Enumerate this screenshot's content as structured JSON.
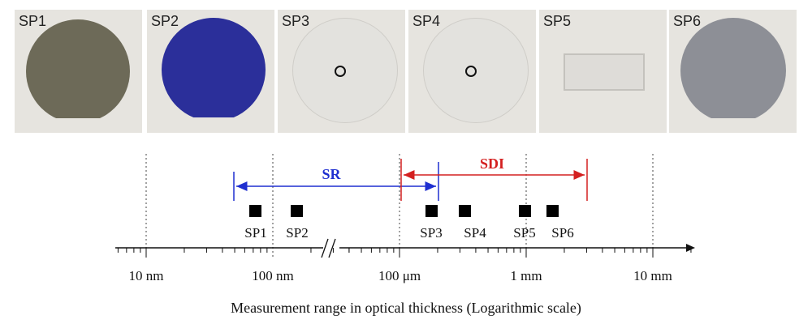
{
  "photos": [
    {
      "label": "SP1",
      "fill": "#6d6a58"
    },
    {
      "label": "SP2",
      "fill": "#2b2f9a"
    },
    {
      "label": "SP3",
      "fill": "#e3e2de"
    },
    {
      "label": "SP4",
      "fill": "#e3e2de"
    },
    {
      "label": "SP5",
      "fill": "#e1e0dc"
    },
    {
      "label": "SP6",
      "fill": "#8d8f96"
    }
  ],
  "axis": {
    "ticks": [
      "10 nm",
      "100 nm",
      "100 μm",
      "1 mm",
      "10 mm"
    ],
    "caption": "Measurement range in optical thickness (Logarithmic scale)"
  },
  "ranges": {
    "sr": {
      "label": "SR",
      "color": "#1f2fd0"
    },
    "sdi": {
      "label": "SDI",
      "color": "#d42020"
    }
  },
  "samples": [
    "SP1",
    "SP2",
    "SP3",
    "SP4",
    "SP5",
    "SP6"
  ]
}
